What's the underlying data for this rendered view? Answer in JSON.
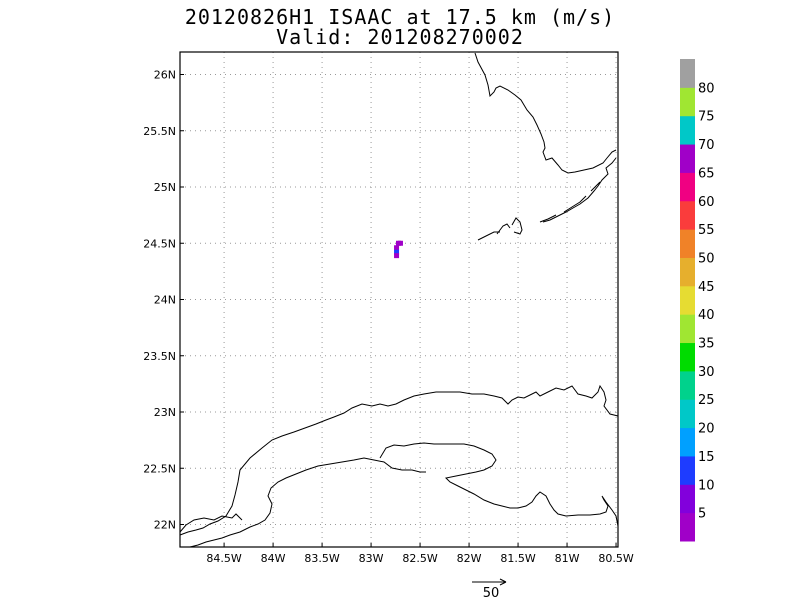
{
  "title": {
    "line1": "20120826H1 ISAAC at 17.5 km (m/s)",
    "line2": "Valid: 201208270002"
  },
  "map": {
    "lat_ticks": [
      "26N",
      "25.5N",
      "25N",
      "24.5N",
      "24N",
      "23.5N",
      "23N",
      "22.5N",
      "22N"
    ],
    "lon_ticks": [
      "84.5W",
      "84W",
      "83.5W",
      "83W",
      "82.5W",
      "82W",
      "81.5W",
      "81W",
      "80.5W"
    ],
    "lat_range": [
      21.8,
      26.2
    ],
    "lon_range": [
      -84.95,
      -80.48
    ],
    "grid": "dotted",
    "coastline_color": "#000000"
  },
  "wind_obs": [
    {
      "lon": -82.72,
      "lat": 24.5,
      "color": "#a000c8"
    },
    {
      "lon": -82.7,
      "lat": 24.5,
      "color": "#a000c8"
    },
    {
      "lon": -82.74,
      "lat": 24.46,
      "color": "#a000c8"
    },
    {
      "lon": -82.74,
      "lat": 24.42,
      "color": "#1e3cff"
    },
    {
      "lon": -82.74,
      "lat": 24.39,
      "color": "#a000c8"
    }
  ],
  "colorbar": {
    "labels": [
      "5",
      "10",
      "15",
      "20",
      "25",
      "30",
      "35",
      "40",
      "45",
      "50",
      "55",
      "60",
      "65",
      "70",
      "75",
      "80"
    ],
    "colors": [
      "#a000c8",
      "#8200dc",
      "#1e3cff",
      "#00a0ff",
      "#00c8c8",
      "#00d28c",
      "#00dc00",
      "#a0e632",
      "#e6dc32",
      "#e6af2d",
      "#f08228",
      "#fa3c3c",
      "#f00082",
      "#a000c8",
      "#00c8c8",
      "#a0e632",
      "#a0a0a0"
    ]
  },
  "reference_vector": {
    "label": "50"
  }
}
